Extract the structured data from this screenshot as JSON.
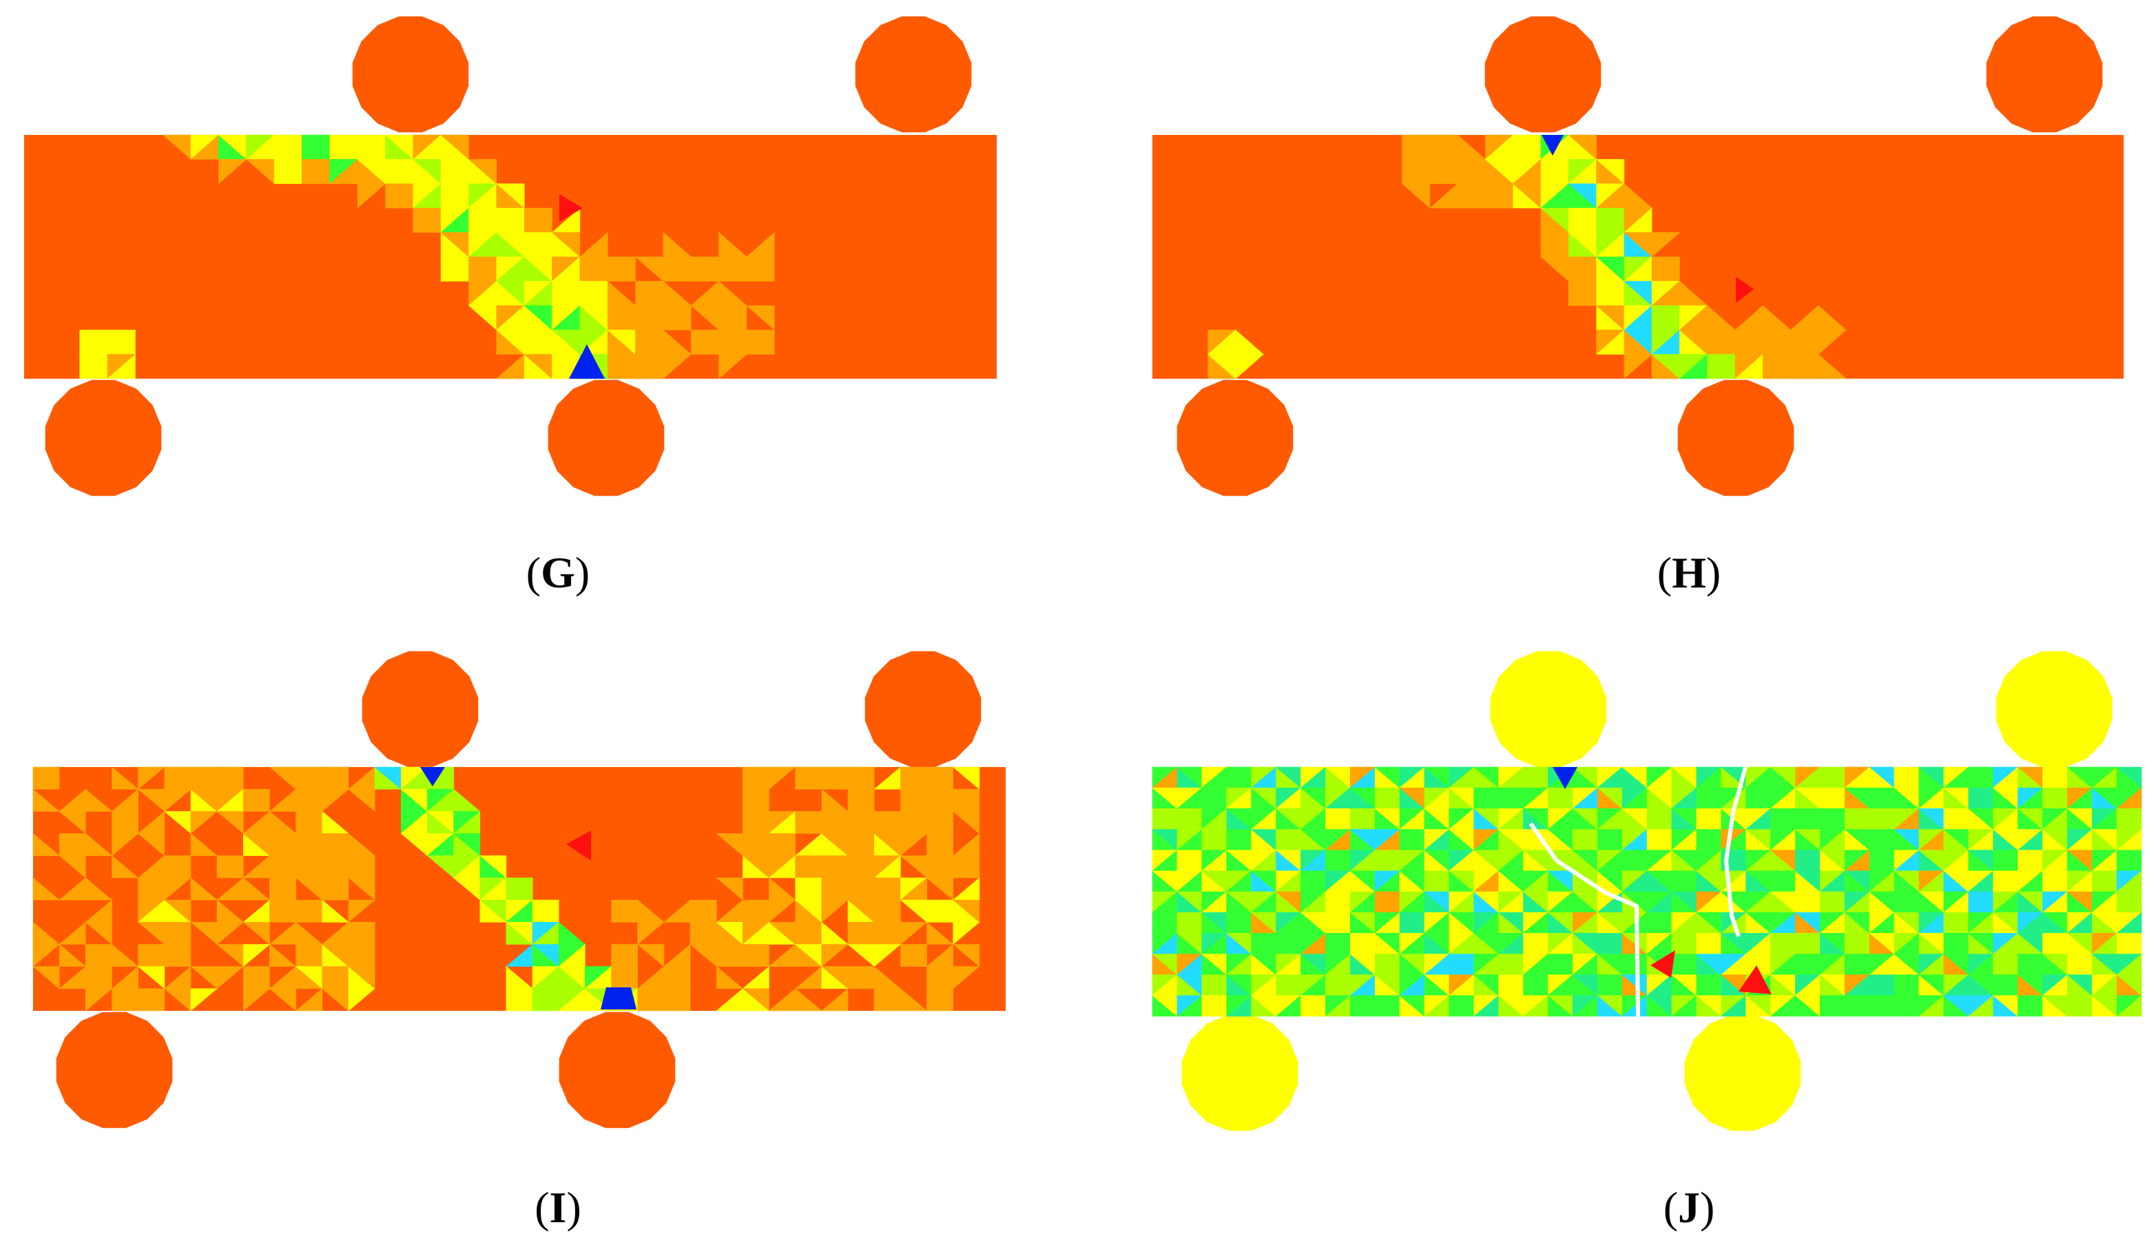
{
  "figure": {
    "panels": [
      {
        "id": "G",
        "caption_open": "(",
        "caption_letter": "G",
        "caption_close": ")",
        "scheme": "stress-red",
        "crack": false,
        "hotspots": "diagonal-left"
      },
      {
        "id": "H",
        "caption_open": "(",
        "caption_letter": "H",
        "caption_close": ")",
        "scheme": "stress-red",
        "crack": false,
        "hotspots": "diagonal-narrow"
      },
      {
        "id": "I",
        "caption_open": "(",
        "caption_letter": "I",
        "caption_close": ")",
        "scheme": "stress-mixed",
        "crack": false,
        "hotspots": "spread"
      },
      {
        "id": "J",
        "caption_open": "(",
        "caption_letter": "J",
        "caption_close": ")",
        "scheme": "stress-green",
        "crack": true,
        "hotspots": "fractured"
      }
    ],
    "colors": {
      "body": "#ff5a00",
      "roller_red": "#ff5a00",
      "roller_yellow": "#ffff00",
      "orange": "#ffa400",
      "yellow": "#ffff00",
      "lime": "#aaff00",
      "green": "#33ff33",
      "cyan": "#22ddff",
      "blue": "#0022ee",
      "red": "#ff1010"
    }
  }
}
